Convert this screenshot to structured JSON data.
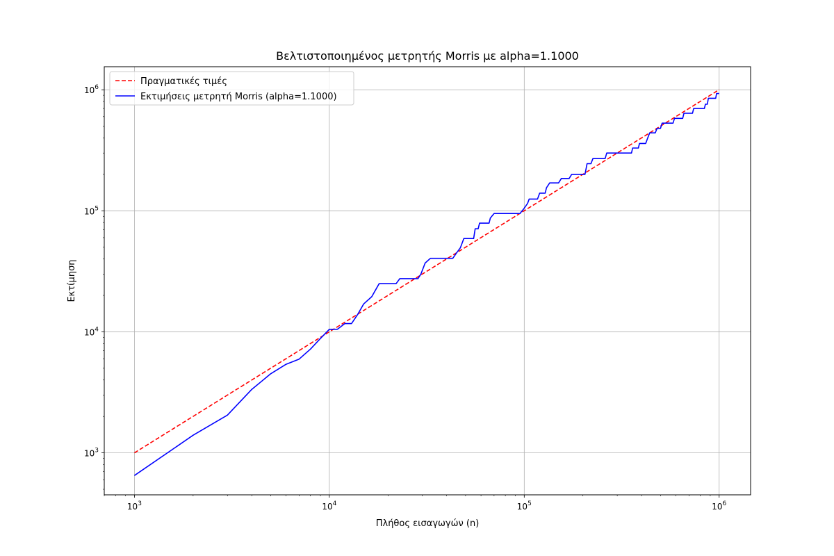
{
  "chart_data": {
    "type": "line",
    "title": "Βελτιστοποιημένος μετρητής Morris με alpha=1.1000",
    "xlabel": "Πλήθος εισαγωγών (n)",
    "ylabel": "Εκτίμηση",
    "x_scale": "log",
    "y_scale": "log",
    "xlim": [
      700,
      1450000
    ],
    "ylim": [
      450,
      1550000
    ],
    "x_ticks": [
      {
        "value": 1000,
        "base": "10",
        "exp": "3"
      },
      {
        "value": 10000,
        "base": "10",
        "exp": "4"
      },
      {
        "value": 100000,
        "base": "10",
        "exp": "5"
      },
      {
        "value": 1000000,
        "base": "10",
        "exp": "6"
      }
    ],
    "y_ticks": [
      {
        "value": 1000,
        "base": "10",
        "exp": "3"
      },
      {
        "value": 10000,
        "base": "10",
        "exp": "4"
      },
      {
        "value": 100000,
        "base": "10",
        "exp": "5"
      },
      {
        "value": 1000000,
        "base": "10",
        "exp": "6"
      }
    ],
    "grid": true,
    "legend_position": "top-left",
    "series": [
      {
        "name": "Πραγματικές τιμές",
        "color": "#ff0000",
        "style": "dashed",
        "points": [
          [
            1000,
            1000
          ],
          [
            1000000,
            1000000
          ]
        ]
      },
      {
        "name": "Εκτιμήσεις μετρητή Morris (alpha=1.1000)",
        "color": "#0000ff",
        "style": "solid",
        "points": [
          [
            1000,
            650
          ],
          [
            2000,
            1400
          ],
          [
            3000,
            2050
          ],
          [
            4000,
            3350
          ],
          [
            5000,
            4500
          ],
          [
            6000,
            5400
          ],
          [
            7000,
            5950
          ],
          [
            8000,
            7200
          ],
          [
            9000,
            8800
          ],
          [
            10000,
            10500
          ],
          [
            11000,
            10500
          ],
          [
            12000,
            11700
          ],
          [
            13000,
            11700
          ],
          [
            14000,
            14000
          ],
          [
            15000,
            17000
          ],
          [
            16500,
            19500
          ],
          [
            18000,
            25000
          ],
          [
            22000,
            25000
          ],
          [
            23000,
            27500
          ],
          [
            28500,
            27500
          ],
          [
            29500,
            30000
          ],
          [
            31000,
            37000
          ],
          [
            33000,
            40500
          ],
          [
            43000,
            40500
          ],
          [
            45000,
            45000
          ],
          [
            47000,
            49500
          ],
          [
            49000,
            59000
          ],
          [
            55000,
            59000
          ],
          [
            56000,
            71000
          ],
          [
            58000,
            71000
          ],
          [
            59000,
            79000
          ],
          [
            66000,
            79000
          ],
          [
            67000,
            87000
          ],
          [
            70000,
            95000
          ],
          [
            95000,
            95000
          ],
          [
            100000,
            105000
          ],
          [
            104000,
            115000
          ],
          [
            106000,
            125000
          ],
          [
            117000,
            125000
          ],
          [
            120000,
            140000
          ],
          [
            128000,
            140000
          ],
          [
            130000,
            155000
          ],
          [
            135000,
            170000
          ],
          [
            150000,
            170000
          ],
          [
            155000,
            185000
          ],
          [
            170000,
            185000
          ],
          [
            175000,
            200000
          ],
          [
            205000,
            200000
          ],
          [
            210000,
            245000
          ],
          [
            220000,
            245000
          ],
          [
            225000,
            270000
          ],
          [
            260000,
            270000
          ],
          [
            265000,
            300000
          ],
          [
            355000,
            300000
          ],
          [
            360000,
            330000
          ],
          [
            385000,
            330000
          ],
          [
            390000,
            360000
          ],
          [
            420000,
            360000
          ],
          [
            430000,
            400000
          ],
          [
            440000,
            440000
          ],
          [
            470000,
            440000
          ],
          [
            480000,
            480000
          ],
          [
            500000,
            480000
          ],
          [
            510000,
            530000
          ],
          [
            580000,
            530000
          ],
          [
            590000,
            580000
          ],
          [
            650000,
            580000
          ],
          [
            660000,
            640000
          ],
          [
            730000,
            640000
          ],
          [
            740000,
            700000
          ],
          [
            840000,
            700000
          ],
          [
            850000,
            760000
          ],
          [
            870000,
            760000
          ],
          [
            880000,
            850000
          ],
          [
            960000,
            850000
          ],
          [
            970000,
            930000
          ],
          [
            1000000,
            930000
          ]
        ]
      }
    ]
  }
}
